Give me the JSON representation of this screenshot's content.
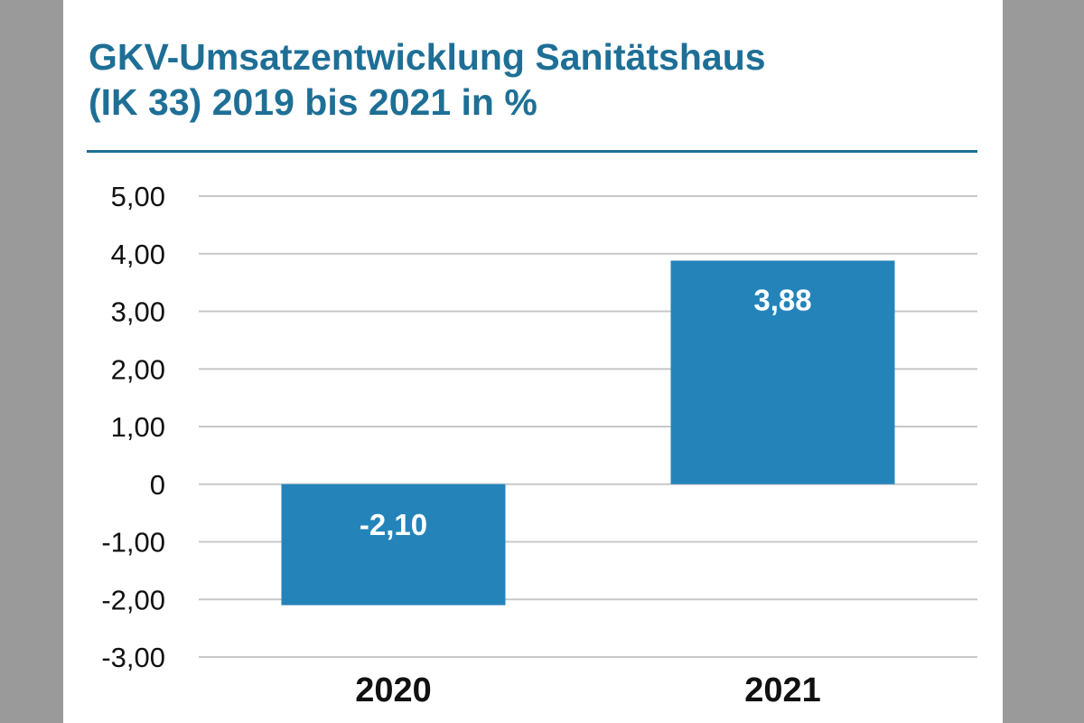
{
  "colors": {
    "title": "#1e6f96",
    "bar": "#2484ba",
    "grid": "#c8c8c8",
    "label_on_bar": "#ffffff",
    "axis_text": "#111111",
    "backdrop": "#9a9a9a"
  },
  "chart_data": {
    "type": "bar",
    "title_lines": [
      "GKV-Umsatzentwicklung Sanitätshaus",
      "(IK 33) 2019 bis 2021 in %"
    ],
    "categories": [
      "2020",
      "2021"
    ],
    "values": [
      -2.1,
      3.88
    ],
    "value_labels": [
      "-2,10",
      "3,88"
    ],
    "ylim": [
      -3,
      5
    ],
    "yticks": [
      5,
      4,
      3,
      2,
      1,
      0,
      -1,
      -2,
      -3
    ],
    "ytick_labels": [
      "5,00",
      "4,00",
      "3,00",
      "2,00",
      "1,00",
      "0",
      "-1,00",
      "-2,00",
      "-3,00"
    ],
    "grid": true,
    "legend": "none"
  }
}
